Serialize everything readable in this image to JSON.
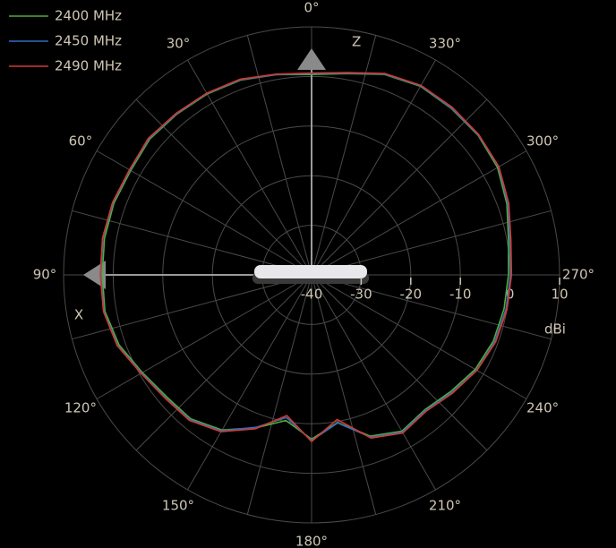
{
  "chart_data": {
    "type": "polar",
    "direction": "counterclockwise",
    "zero_location": "top",
    "theta": [
      0,
      10,
      20,
      30,
      40,
      50,
      60,
      70,
      80,
      90,
      100,
      110,
      120,
      130,
      140,
      150,
      160,
      170,
      180,
      190,
      200,
      210,
      220,
      230,
      240,
      250,
      260,
      270,
      280,
      290,
      300,
      310,
      320,
      330,
      340,
      350
    ],
    "series": [
      {
        "name": "2400 MHz",
        "color": "#4fae3a",
        "values": [
          0.4,
          1.0,
          1.8,
          2.1,
          2.3,
          2.6,
          2.1,
          2.4,
          2.4,
          2.2,
          2.3,
          1.3,
          -0.6,
          -1.8,
          -2.1,
          -3.9,
          -7.2,
          -10.2,
          -6.9,
          -9.8,
          -5.4,
          -3.6,
          -4.5,
          -3.4,
          -1.9,
          -1.0,
          -0.6,
          -0.3,
          0.3,
          1.9,
          3.3,
          3.8,
          3.8,
          3.9,
          3.0,
          1.2
        ]
      },
      {
        "name": "2450 MHz",
        "color": "#2f6fc0",
        "values": [
          0.6,
          1.0,
          1.9,
          2.2,
          2.4,
          2.8,
          2.3,
          2.6,
          2.7,
          2.5,
          2.5,
          1.6,
          -0.4,
          -1.5,
          -1.9,
          -3.7,
          -7.3,
          -10.8,
          -6.6,
          -9.7,
          -5.2,
          -3.4,
          -4.3,
          -3.1,
          -1.6,
          -0.7,
          -0.2,
          0.1,
          0.6,
          2.1,
          3.5,
          3.9,
          3.9,
          4.0,
          3.1,
          1.3
        ]
      },
      {
        "name": "2490 MHz",
        "color": "#d23a32",
        "values": [
          0.7,
          1.1,
          2.0,
          2.3,
          2.5,
          2.9,
          2.4,
          2.7,
          2.8,
          2.6,
          2.6,
          1.7,
          -0.3,
          -1.4,
          -1.7,
          -3.5,
          -7.0,
          -11.2,
          -6.4,
          -10.4,
          -5.0,
          -3.2,
          -4.1,
          -2.9,
          -1.5,
          -0.5,
          0.0,
          0.3,
          0.8,
          2.3,
          3.6,
          4.0,
          4.1,
          4.1,
          3.2,
          1.4
        ]
      }
    ],
    "rlim": [
      -40,
      10
    ],
    "rticks": [
      -40,
      -30,
      -20,
      -10,
      0,
      10
    ],
    "thetaticks": [
      {
        "value": 0,
        "label": "0°"
      },
      {
        "value": 30,
        "label": "30°"
      },
      {
        "value": 60,
        "label": "60°"
      },
      {
        "value": 90,
        "label": "90°"
      },
      {
        "value": 120,
        "label": "120°"
      },
      {
        "value": 150,
        "label": "150°"
      },
      {
        "value": 180,
        "label": "180°"
      },
      {
        "value": 210,
        "label": "210°"
      },
      {
        "value": 240,
        "label": "240°"
      },
      {
        "value": 270,
        "label": "270°"
      },
      {
        "value": 300,
        "label": "300°"
      },
      {
        "value": 330,
        "label": "330°"
      }
    ],
    "r_label": "dBi",
    "axis_labels": {
      "z": "Z",
      "x": "X"
    },
    "grid": true,
    "legend": "top-left"
  }
}
